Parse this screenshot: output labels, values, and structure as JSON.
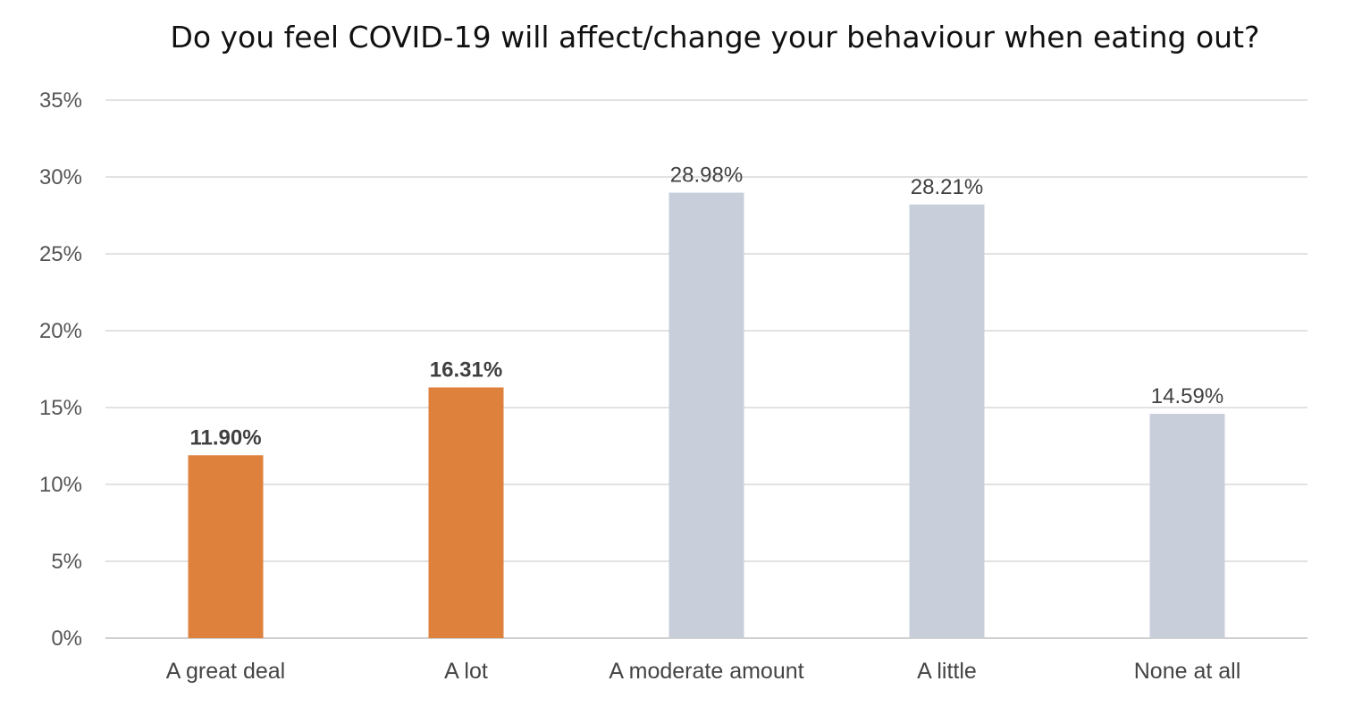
{
  "chart_data": {
    "type": "bar",
    "title": "Do you feel COVID-19 will affect/change your behaviour when eating out?",
    "categories": [
      "A great deal",
      "A lot",
      "A moderate amount",
      "A little",
      "None at all"
    ],
    "values": [
      11.9,
      16.31,
      28.98,
      28.21,
      14.59
    ],
    "data_labels": [
      "11.90%",
      "16.31%",
      "28.98%",
      "28.21%",
      "14.59%"
    ],
    "data_label_bold": [
      true,
      true,
      false,
      false,
      false
    ],
    "bar_colors": [
      "#DE813C",
      "#DE813C",
      "#C8CFDB",
      "#C8CFDB",
      "#C8CFDB"
    ],
    "ylim": [
      0,
      35
    ],
    "yticks": [
      0,
      5,
      10,
      15,
      20,
      25,
      30,
      35
    ],
    "ytick_labels": [
      "0%",
      "5%",
      "10%",
      "15%",
      "20%",
      "25%",
      "30%",
      "35%"
    ],
    "xlabel": "",
    "ylabel": "",
    "grid": true,
    "legend": "none",
    "gridline_color": "#D9D9D9"
  }
}
